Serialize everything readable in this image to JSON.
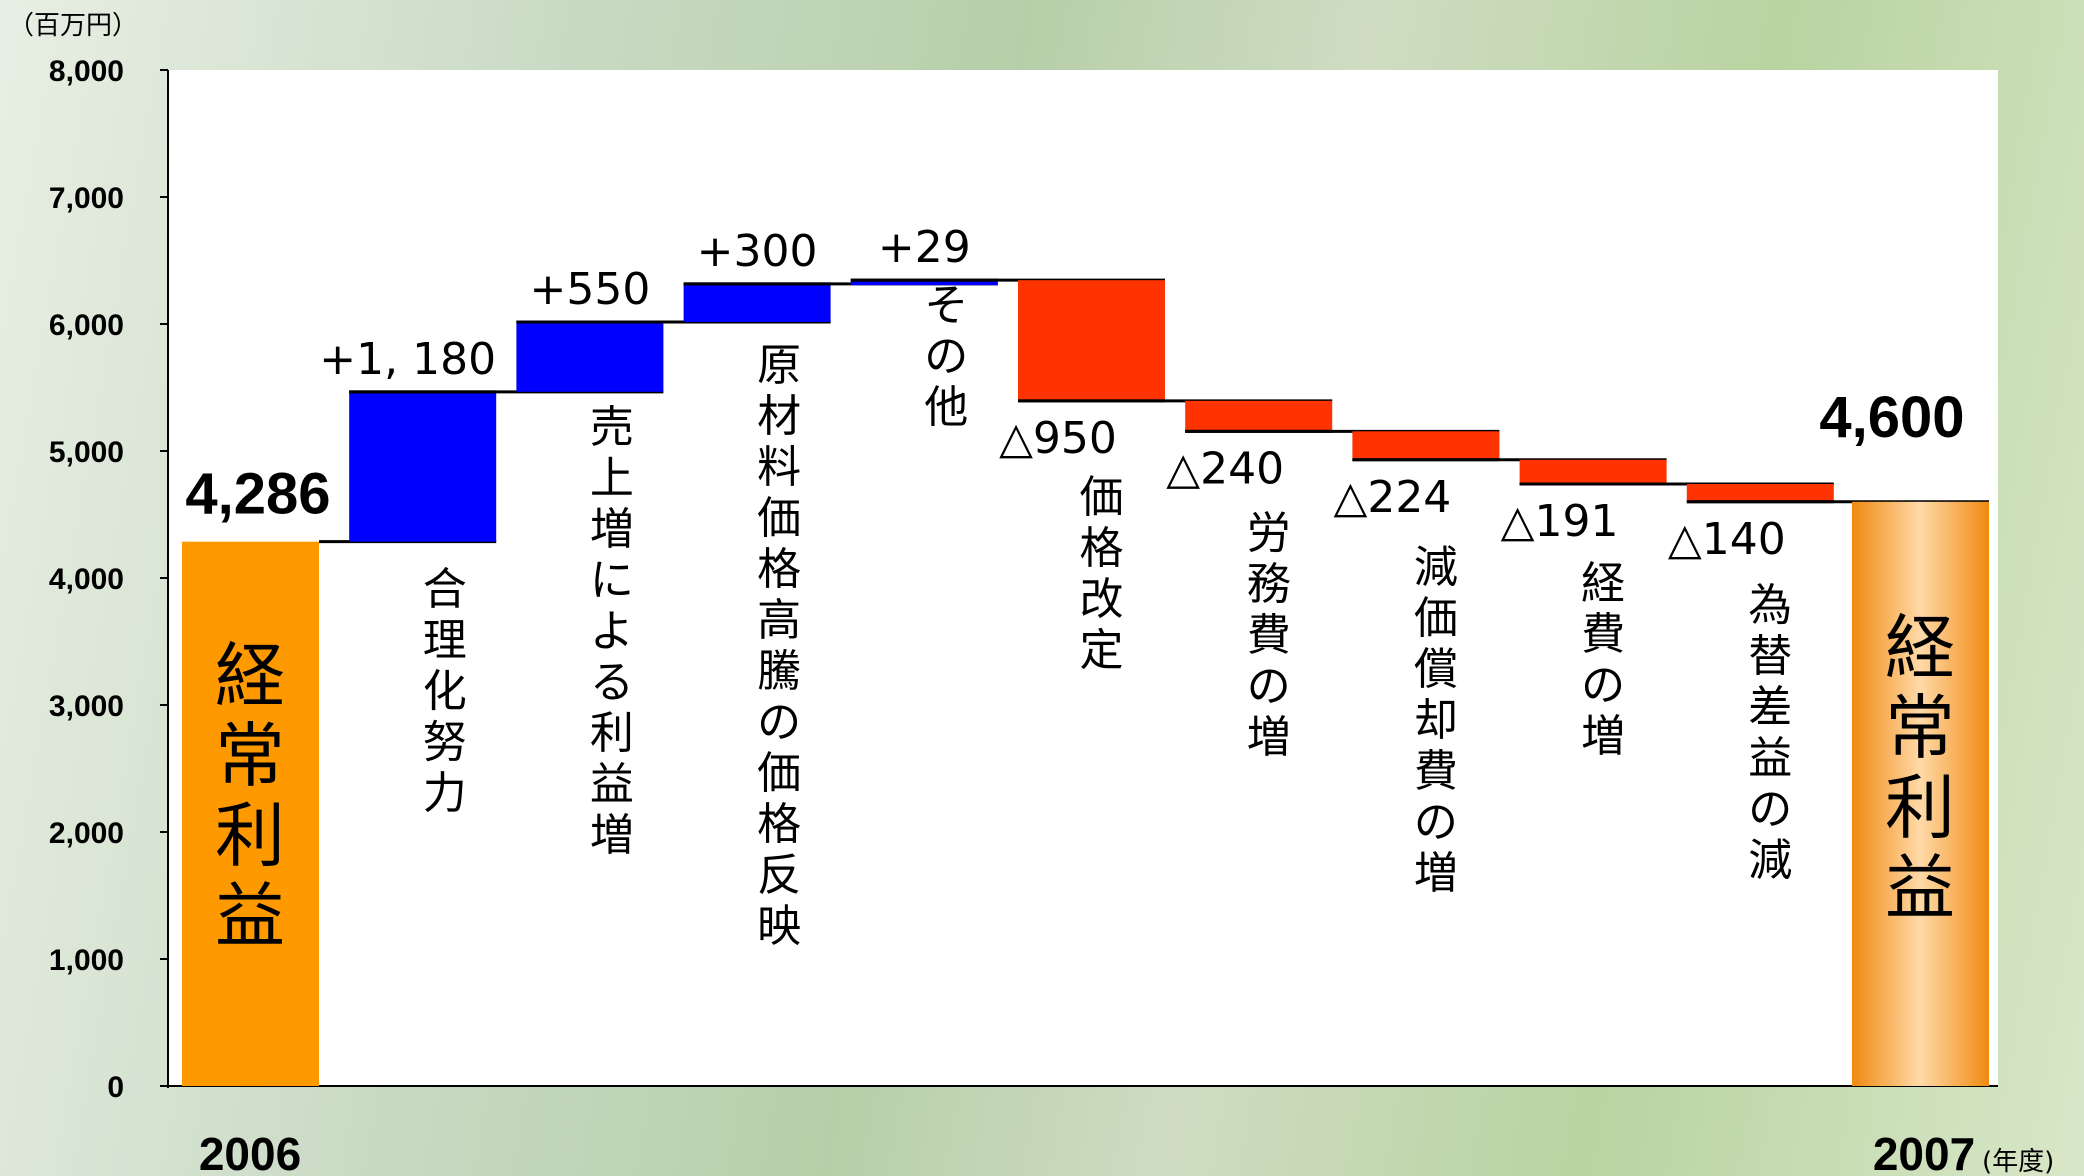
{
  "chart_data": {
    "type": "bar",
    "subtype": "waterfall",
    "unit_label": "（百万円）",
    "x_unit_label": "(年度)",
    "yticks": [
      "0",
      "1,000",
      "2,000",
      "3,000",
      "4,000",
      "5,000",
      "6,000",
      "7,000",
      "8,000"
    ],
    "ylim": [
      0,
      8000
    ],
    "start": {
      "year": "2006",
      "label": "経常利益",
      "value": 4286,
      "value_label": "4,286",
      "color": "#ff9900"
    },
    "end": {
      "year": "2007",
      "label": "経常利益",
      "value": 4600,
      "value_label": "4,600",
      "color": "#ff9900"
    },
    "steps": [
      {
        "label": "合理化努力",
        "delta": 1180,
        "delta_label": "+1, 180"
      },
      {
        "label": "売上増による利益増",
        "delta": 550,
        "delta_label": "+550"
      },
      {
        "label": "原材料価格高騰の価格反映",
        "delta": 300,
        "delta_label": "+300"
      },
      {
        "label": "その他",
        "delta": 29,
        "delta_label": "+29"
      },
      {
        "label": "価格改定",
        "delta": -950,
        "delta_label": "△950"
      },
      {
        "label": "労務費の増",
        "delta": -240,
        "delta_label": "△240"
      },
      {
        "label": "減価償却費の増",
        "delta": -224,
        "delta_label": "△224"
      },
      {
        "label": "経費の増",
        "delta": -191,
        "delta_label": "△191"
      },
      {
        "label": "為替差益の減",
        "delta": -140,
        "delta_label": "△140"
      }
    ],
    "colors": {
      "increase": "#0000ff",
      "decrease": "#ff3300",
      "endpoint": "#ff9900"
    },
    "grid": false
  }
}
